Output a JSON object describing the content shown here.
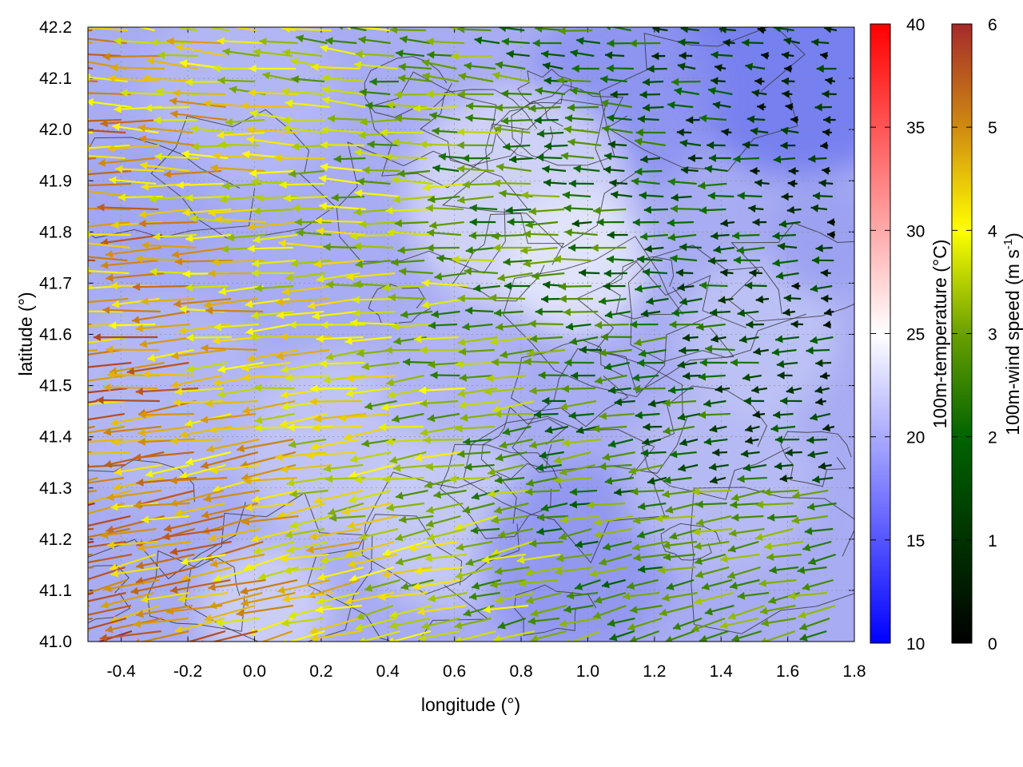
{
  "chart_data": {
    "type": "quiver-heatmap",
    "xlabel": "longitude (°)",
    "ylabel": "latitude (°)",
    "xlim": [
      -0.5,
      1.8
    ],
    "ylim": [
      41.0,
      42.2
    ],
    "x_ticks": [
      "-0.4",
      "-0.2",
      "0.0",
      "0.2",
      "0.4",
      "0.6",
      "0.8",
      "1.0",
      "1.2",
      "1.4",
      "1.6",
      "1.8"
    ],
    "x_tick_values": [
      -0.4,
      -0.2,
      0.0,
      0.2,
      0.4,
      0.6,
      0.8,
      1.0,
      1.2,
      1.4,
      1.6,
      1.8
    ],
    "y_ticks": [
      "41.0",
      "41.1",
      "41.2",
      "41.3",
      "41.4",
      "41.5",
      "41.6",
      "41.7",
      "41.8",
      "41.9",
      "42.0",
      "42.1",
      "42.2"
    ],
    "y_tick_values": [
      41.0,
      41.1,
      41.2,
      41.3,
      41.4,
      41.5,
      41.6,
      41.7,
      41.8,
      41.9,
      42.0,
      42.1,
      42.2
    ],
    "grid": true,
    "temperature_colorbar": {
      "label": "100m-temperature (°C)",
      "range": [
        10,
        40
      ],
      "ticks": [
        "10",
        "15",
        "20",
        "25",
        "30",
        "35",
        "40"
      ],
      "tick_values": [
        10,
        15,
        20,
        25,
        30,
        35,
        40
      ],
      "colors": [
        "#0000ff",
        "#ffffff",
        "#ff0000"
      ]
    },
    "wind_colorbar": {
      "label": "100m-wind speed (m s",
      "label_sup": "-1",
      "label_end": ")",
      "range": [
        0,
        6
      ],
      "ticks": [
        "0",
        "1",
        "2",
        "3",
        "4",
        "5",
        "6"
      ],
      "tick_values": [
        0,
        1,
        2,
        3,
        4,
        5,
        6
      ],
      "colors": [
        "#000000",
        "#006400",
        "#ffff00",
        "#a52a2a"
      ]
    },
    "field_description": {
      "temperature_range_shown": [
        15,
        22
      ],
      "wind_direction": "mostly from east (arrows pointing west)",
      "strong_winds_region": "west and south-west (around 5-6 m s-1)",
      "weak_winds_region": "east and north-east (around 1-3 m s-1)"
    }
  }
}
